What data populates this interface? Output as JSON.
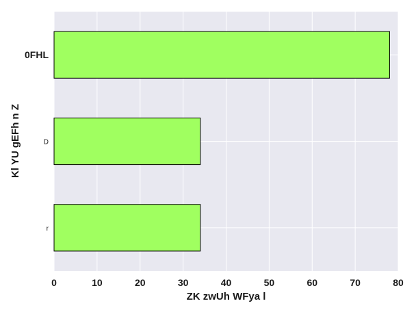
{
  "chart_data": {
    "type": "bar",
    "orientation": "horizontal",
    "categories": [
      "r",
      "D",
      "0FHL"
    ],
    "values": [
      34,
      34,
      78
    ],
    "title": "",
    "xlabel": "ZK zwUh WFya l",
    "ylabel": "Kl YU gEFh n Z",
    "xlim": [
      0,
      80
    ],
    "xticks": [
      0,
      10,
      20,
      30,
      40,
      50,
      60,
      70,
      80
    ],
    "grid": true,
    "colors": {
      "bar_fill": "#a0ff60",
      "bar_edge": "#000000",
      "plot_background": "#e8e8f0",
      "grid": "#ffffff"
    }
  }
}
